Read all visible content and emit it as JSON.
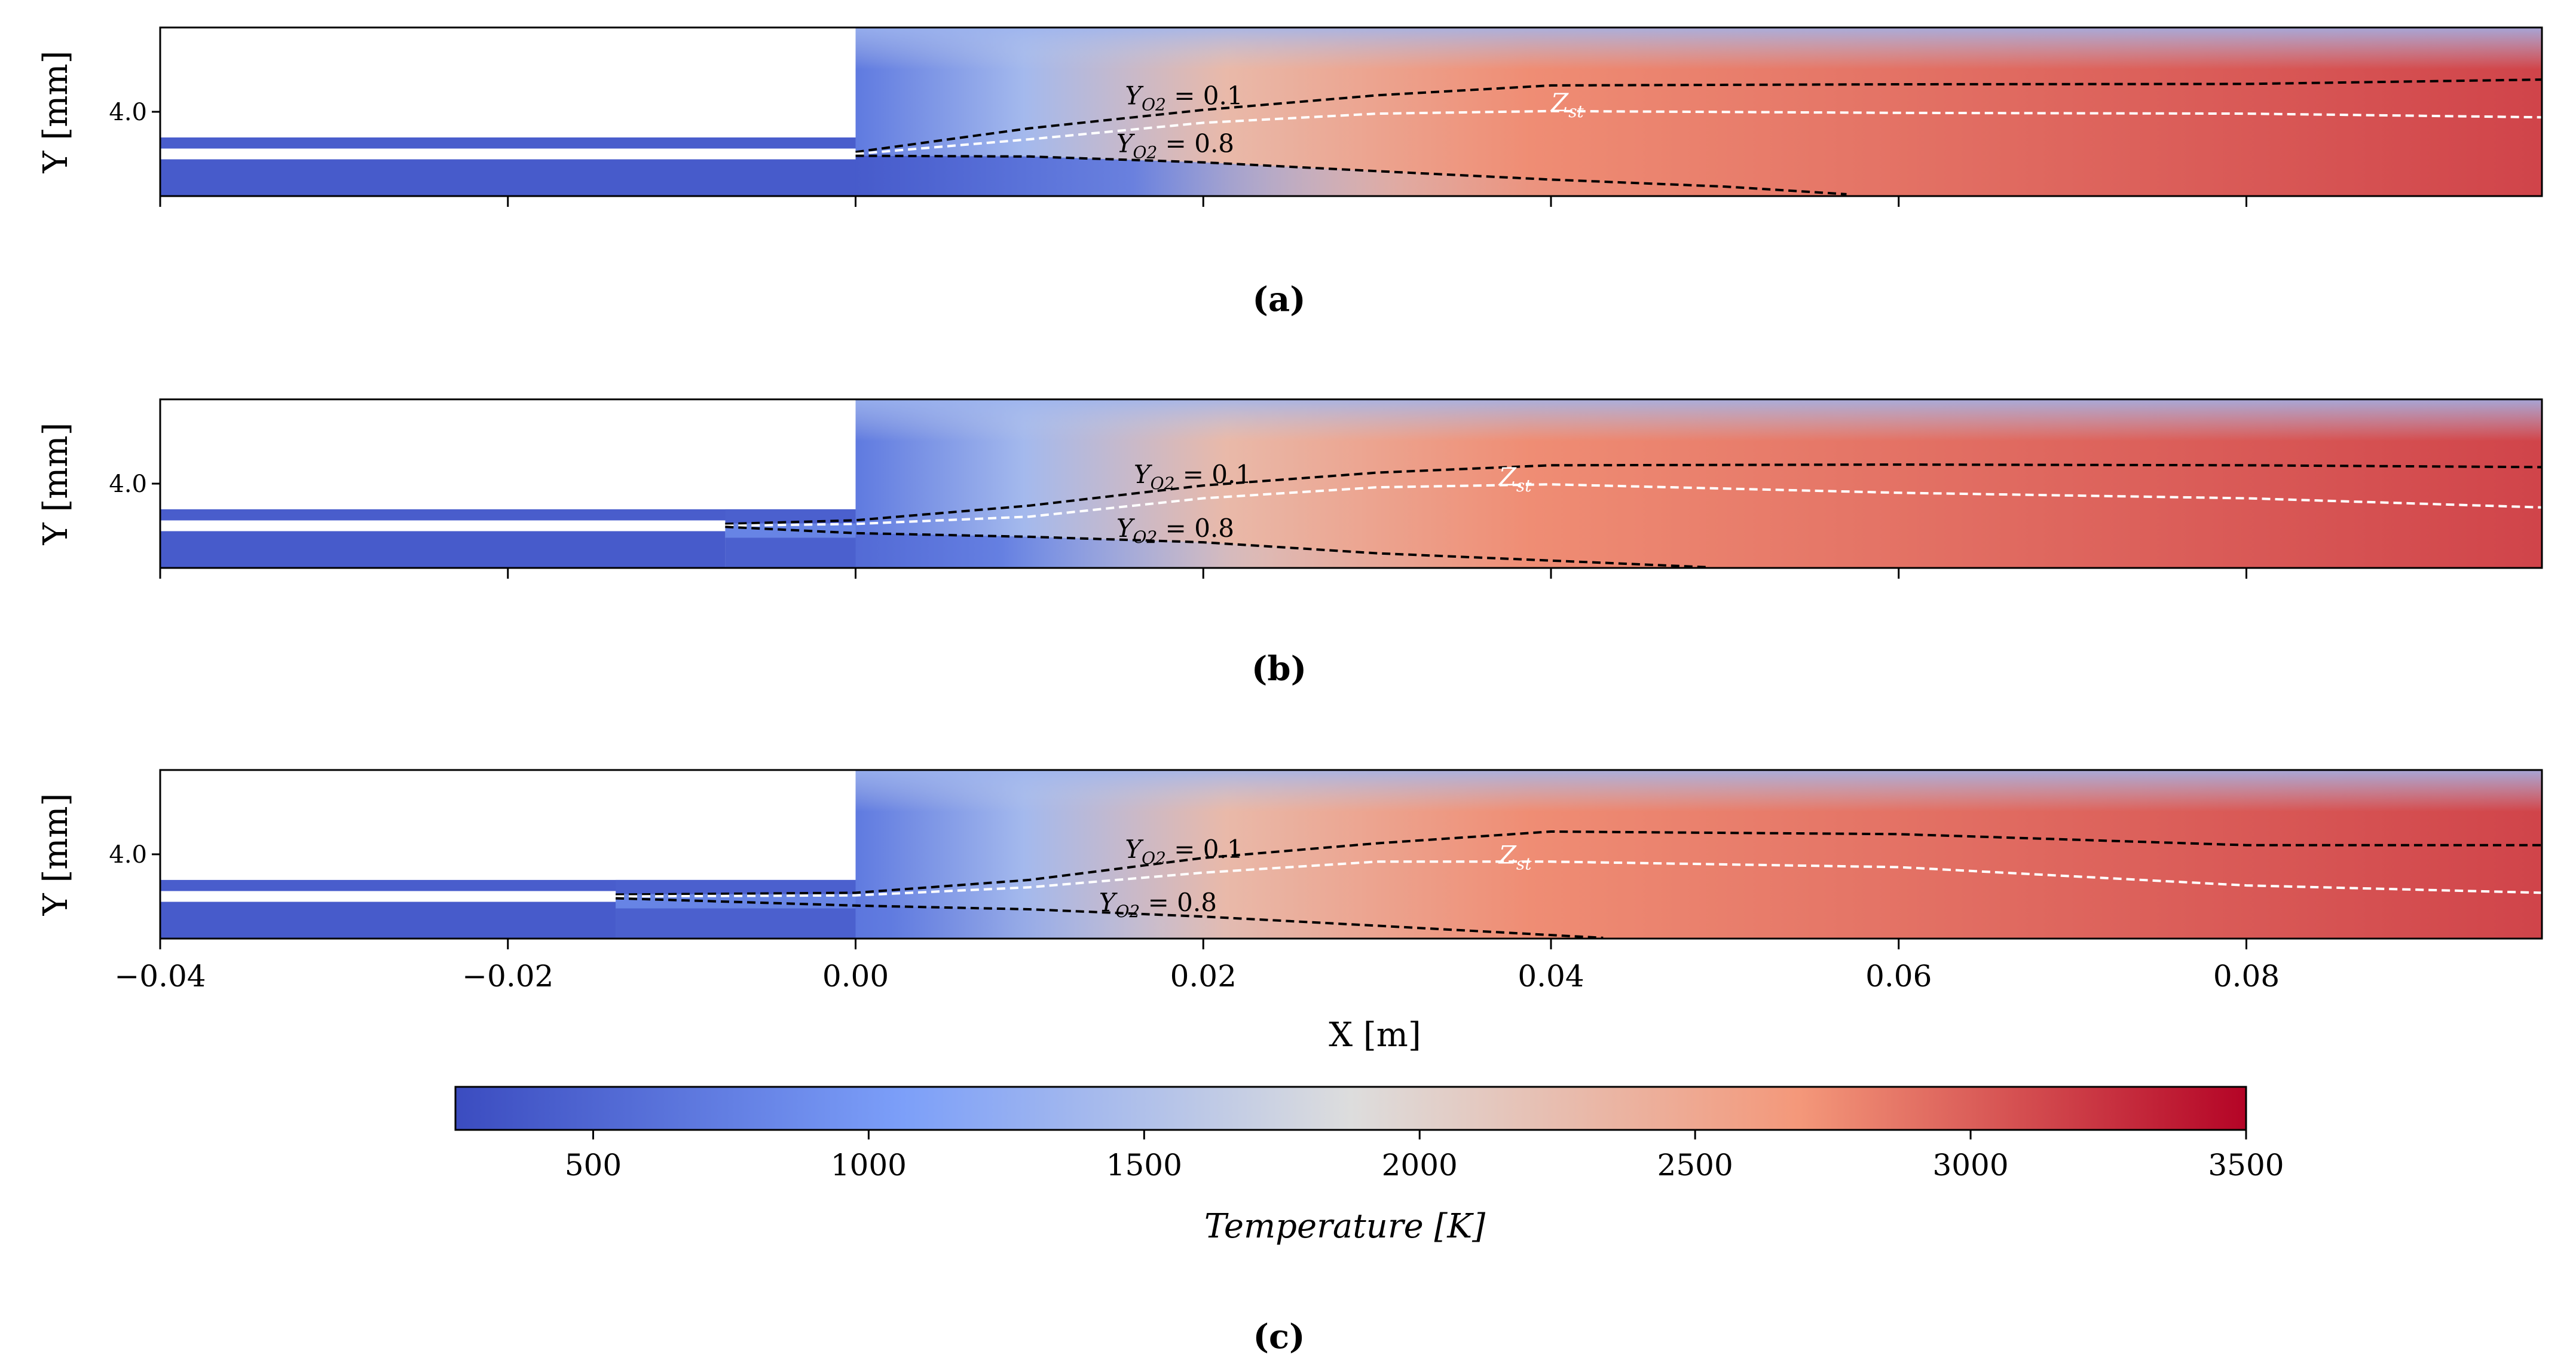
{
  "chart_data": {
    "type": "heatmap",
    "colorscale": "coolwarm",
    "colorbar": {
      "label": "Temperature [K]",
      "range": [
        250,
        3500
      ],
      "ticks": [
        500,
        1000,
        1500,
        2000,
        2500,
        3000,
        3500
      ],
      "tick_labels": [
        "500",
        "1000",
        "1500",
        "2000",
        "2500",
        "3000",
        "3500"
      ]
    },
    "x_axis": {
      "label": "X [m]",
      "range": [
        -0.04,
        0.097
      ],
      "ticks": [
        -0.04,
        -0.02,
        0.0,
        0.02,
        0.04,
        0.06,
        0.08
      ],
      "tick_labels": [
        "−0.04",
        "−0.02",
        "0.00",
        "0.02",
        "0.04",
        "0.06",
        "0.08"
      ]
    },
    "y_axis": {
      "label": "Y [mm]",
      "range": [
        1.7,
        6.3
      ],
      "ticks": [
        4.0
      ],
      "tick_labels": [
        "4.0"
      ]
    },
    "panels": [
      {
        "caption": "(a)",
        "splitter_start_x": 0.0,
        "splitter_y": 2.85,
        "contours": {
          "YO2_0.1": [
            [
              0.0,
              2.9
            ],
            [
              0.01,
              3.55
            ],
            [
              0.02,
              4.05
            ],
            [
              0.03,
              4.45
            ],
            [
              0.04,
              4.72
            ],
            [
              0.06,
              4.75
            ],
            [
              0.08,
              4.76
            ],
            [
              0.097,
              4.88
            ]
          ],
          "Zst": [
            [
              0.0,
              2.85
            ],
            [
              0.01,
              3.25
            ],
            [
              0.02,
              3.7
            ],
            [
              0.03,
              3.95
            ],
            [
              0.04,
              4.02
            ],
            [
              0.06,
              3.97
            ],
            [
              0.08,
              3.95
            ],
            [
              0.097,
              3.85
            ]
          ],
          "YO2_0.8": [
            [
              0.0,
              2.8
            ],
            [
              0.01,
              2.78
            ],
            [
              0.02,
              2.62
            ],
            [
              0.03,
              2.38
            ],
            [
              0.04,
              2.15
            ],
            [
              0.05,
              1.96
            ],
            [
              0.057,
              1.75
            ]
          ]
        },
        "labels": [
          {
            "text": "Y_O2 = 0.1",
            "x": 0.0155,
            "y": 4.2
          },
          {
            "text": "Y_O2 = 0.8",
            "x": 0.015,
            "y": 2.9
          },
          {
            "text": "Z_st",
            "x": 0.04,
            "y": 4.02
          }
        ]
      },
      {
        "caption": "(b)",
        "splitter_start_x": -0.0075,
        "splitter_y": 2.85,
        "contours": {
          "YO2_0.1": [
            [
              -0.0075,
              2.9
            ],
            [
              0.0,
              3.0
            ],
            [
              0.01,
              3.4
            ],
            [
              0.02,
              3.95
            ],
            [
              0.03,
              4.3
            ],
            [
              0.04,
              4.5
            ],
            [
              0.06,
              4.52
            ],
            [
              0.08,
              4.5
            ],
            [
              0.097,
              4.45
            ]
          ],
          "Zst": [
            [
              -0.0075,
              2.85
            ],
            [
              0.0,
              2.9
            ],
            [
              0.01,
              3.1
            ],
            [
              0.02,
              3.6
            ],
            [
              0.03,
              3.9
            ],
            [
              0.04,
              3.98
            ],
            [
              0.06,
              3.75
            ],
            [
              0.08,
              3.6
            ],
            [
              0.097,
              3.35
            ]
          ],
          "YO2_0.8": [
            [
              -0.0075,
              2.82
            ],
            [
              0.0,
              2.65
            ],
            [
              0.01,
              2.55
            ],
            [
              0.02,
              2.4
            ],
            [
              0.03,
              2.1
            ],
            [
              0.04,
              1.9
            ],
            [
              0.049,
              1.72
            ]
          ]
        },
        "labels": [
          {
            "text": "Y_O2 = 0.1",
            "x": 0.016,
            "y": 4.02
          },
          {
            "text": "Y_O2 = 0.8",
            "x": 0.015,
            "y": 2.55
          },
          {
            "text": "Z_st",
            "x": 0.037,
            "y": 3.95
          }
        ]
      },
      {
        "caption": "(c)",
        "splitter_start_x": -0.0138,
        "splitter_y": 2.85,
        "contours": {
          "YO2_0.1": [
            [
              -0.0138,
              2.9
            ],
            [
              0.0,
              2.95
            ],
            [
              0.01,
              3.3
            ],
            [
              0.02,
              3.9
            ],
            [
              0.03,
              4.3
            ],
            [
              0.04,
              4.62
            ],
            [
              0.06,
              4.55
            ],
            [
              0.08,
              4.25
            ],
            [
              0.097,
              4.25
            ]
          ],
          "Zst": [
            [
              -0.0138,
              2.85
            ],
            [
              0.0,
              2.88
            ],
            [
              0.01,
              3.1
            ],
            [
              0.02,
              3.5
            ],
            [
              0.03,
              3.8
            ],
            [
              0.04,
              3.8
            ],
            [
              0.06,
              3.65
            ],
            [
              0.08,
              3.15
            ],
            [
              0.097,
              2.95
            ]
          ],
          "YO2_0.8": [
            [
              -0.0138,
              2.8
            ],
            [
              0.0,
              2.6
            ],
            [
              0.01,
              2.5
            ],
            [
              0.02,
              2.3
            ],
            [
              0.03,
              2.05
            ],
            [
              0.043,
              1.72
            ]
          ]
        },
        "labels": [
          {
            "text": "Y_O2 = 0.1",
            "x": 0.0155,
            "y": 3.9
          },
          {
            "text": "Y_O2 = 0.8",
            "x": 0.014,
            "y": 2.45
          },
          {
            "text": "Z_st",
            "x": 0.037,
            "y": 3.75
          }
        ]
      }
    ]
  }
}
